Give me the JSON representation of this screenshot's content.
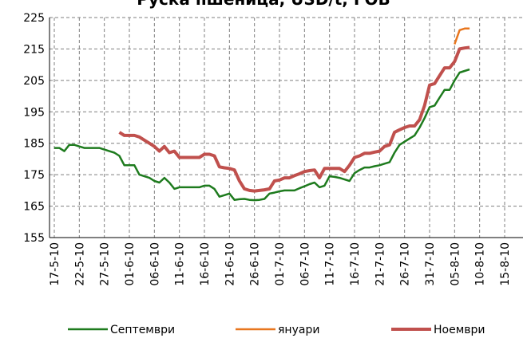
{
  "chart_data": {
    "type": "line",
    "title": "Руска пшеница, USD/t, FOB",
    "categories": [
      "17-5-10",
      null,
      null,
      null,
      null,
      "22-5-10",
      null,
      null,
      null,
      null,
      "27-5-10",
      null,
      null,
      null,
      null,
      "01-6-10",
      null,
      null,
      null,
      null,
      "06-6-10",
      null,
      null,
      null,
      null,
      "11-6-10",
      null,
      null,
      null,
      null,
      "16-6-10",
      null,
      null,
      null,
      null,
      "21-6-10",
      null,
      null,
      null,
      null,
      "26-6-10",
      null,
      null,
      null,
      null,
      "01-7-10",
      null,
      null,
      null,
      null,
      "06-7-10",
      null,
      null,
      null,
      null,
      "11-7-10",
      null,
      null,
      null,
      null,
      "16-7-10",
      null,
      null,
      null,
      null,
      "21-7-10",
      null,
      null,
      null,
      null,
      "26-7-10",
      null,
      null,
      null,
      null,
      "31-7-10",
      null,
      null,
      null,
      null,
      "05-8-10",
      null,
      null,
      null,
      null,
      "10-8-10",
      null,
      null,
      null,
      null,
      "15-8-10"
    ],
    "series": [
      {
        "name": "Септември",
        "color": "#1e7b1e",
        "values": [
          183.5,
          183.5,
          182.5,
          184.5,
          184.5,
          184,
          183.5,
          183.5,
          183.5,
          183.5,
          183,
          182.5,
          182,
          181,
          178,
          178,
          178,
          175,
          174.5,
          174,
          173,
          172.5,
          174,
          172.5,
          170.5,
          171,
          171,
          171,
          171,
          171,
          171.5,
          171.5,
          170.5,
          168,
          168.5,
          169,
          167,
          167.2,
          167.3,
          167,
          166.9,
          167,
          167.3,
          169,
          169.3,
          169.7,
          170,
          170,
          170,
          170.7,
          171.3,
          172,
          172.5,
          171,
          171.5,
          174.5,
          174.3,
          174,
          173.5,
          173,
          175.5,
          176.5,
          177.3,
          177.3,
          177.7,
          178,
          178.5,
          179,
          182,
          184.5,
          185.5,
          186.5,
          187.5,
          190,
          193,
          196.5,
          197,
          199.5,
          202,
          202,
          205,
          207.5,
          208,
          208.5,
          null,
          null,
          null,
          null,
          null,
          null,
          null
        ]
      },
      {
        "name": "януари",
        "color": "#e8761e",
        "values": [
          null,
          null,
          null,
          null,
          null,
          null,
          null,
          null,
          null,
          null,
          null,
          null,
          null,
          null,
          null,
          null,
          null,
          null,
          null,
          null,
          null,
          null,
          null,
          null,
          null,
          null,
          null,
          null,
          null,
          null,
          null,
          null,
          null,
          null,
          null,
          null,
          null,
          null,
          null,
          null,
          null,
          null,
          null,
          null,
          null,
          null,
          null,
          null,
          null,
          null,
          null,
          null,
          null,
          null,
          null,
          null,
          null,
          null,
          null,
          null,
          null,
          null,
          null,
          null,
          null,
          null,
          null,
          null,
          null,
          null,
          null,
          null,
          null,
          null,
          null,
          null,
          null,
          null,
          null,
          null,
          216.5,
          221,
          221.5,
          221.5,
          null,
          null,
          null,
          null,
          null,
          null,
          null
        ]
      },
      {
        "name": "Ноември",
        "color": "#c0504d",
        "values": [
          null,
          null,
          null,
          null,
          null,
          null,
          null,
          null,
          null,
          null,
          null,
          null,
          null,
          188.5,
          187.5,
          187.5,
          187.5,
          187,
          186,
          185,
          184,
          182.5,
          184,
          182,
          182.5,
          180.5,
          180.5,
          180.5,
          180.5,
          180.5,
          181.5,
          181.5,
          181,
          177.5,
          177.2,
          177,
          176.5,
          173,
          170.5,
          170,
          169.8,
          170,
          170.2,
          170.5,
          173,
          173.3,
          174,
          174,
          174.7,
          175.3,
          176,
          176.3,
          176.5,
          174,
          177,
          177,
          177,
          177,
          176,
          178,
          180.5,
          181,
          181.8,
          181.8,
          182.2,
          182.5,
          184,
          184.5,
          188.5,
          189.3,
          190,
          190.5,
          190.5,
          192.5,
          197,
          203.5,
          204,
          206.5,
          209,
          209,
          211,
          215,
          215.3,
          215.5,
          null,
          null,
          null,
          null,
          null,
          null,
          null
        ]
      }
    ],
    "ylim": [
      155,
      225
    ],
    "yticks": [
      155,
      165,
      175,
      185,
      195,
      205,
      215,
      225
    ],
    "grid": true,
    "legend": "bottom"
  }
}
